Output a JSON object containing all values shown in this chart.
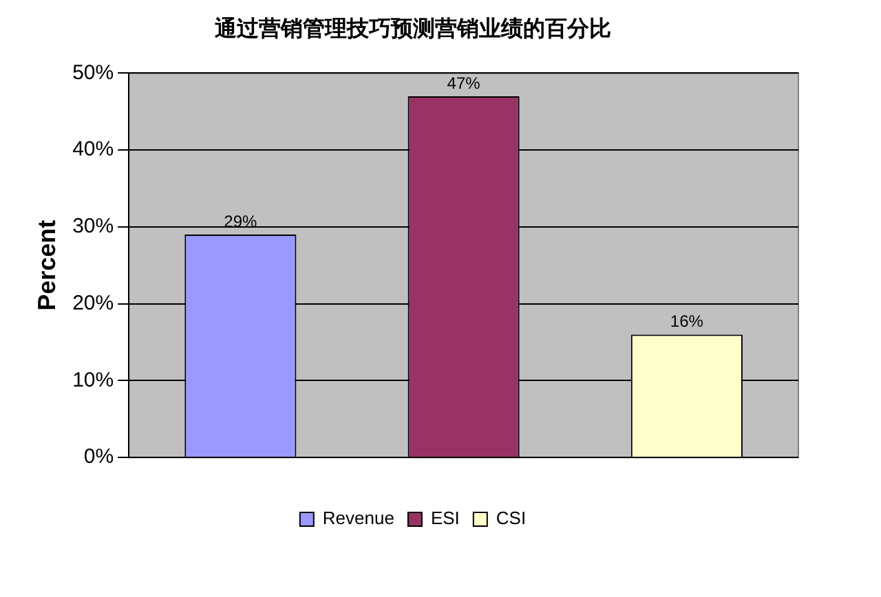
{
  "chart_data": {
    "type": "bar",
    "title": "通过营销管理技巧预测营销业绩的百分比",
    "ylabel": "Percent",
    "categories": [
      null,
      null,
      null
    ],
    "series": [
      {
        "name": "Revenue",
        "color": "#9999ff",
        "values": [
          29,
          null,
          null
        ],
        "value_labels": [
          "29%",
          null,
          null
        ]
      },
      {
        "name": "ESI",
        "color": "#993366",
        "values": [
          null,
          47,
          null
        ],
        "value_labels": [
          null,
          "47%",
          null
        ]
      },
      {
        "name": "CSI",
        "color": "#ffffcc",
        "values": [
          null,
          null,
          16
        ],
        "value_labels": [
          null,
          null,
          "16%"
        ]
      }
    ],
    "ylim": [
      0,
      50
    ],
    "yticks": [
      {
        "value": 0,
        "label": "0%"
      },
      {
        "value": 10,
        "label": "10%"
      },
      {
        "value": 20,
        "label": "20%"
      },
      {
        "value": 30,
        "label": "30%"
      },
      {
        "value": 40,
        "label": "40%"
      },
      {
        "value": 50,
        "label": "50%"
      }
    ],
    "grid": "y",
    "legend": "bottom"
  }
}
